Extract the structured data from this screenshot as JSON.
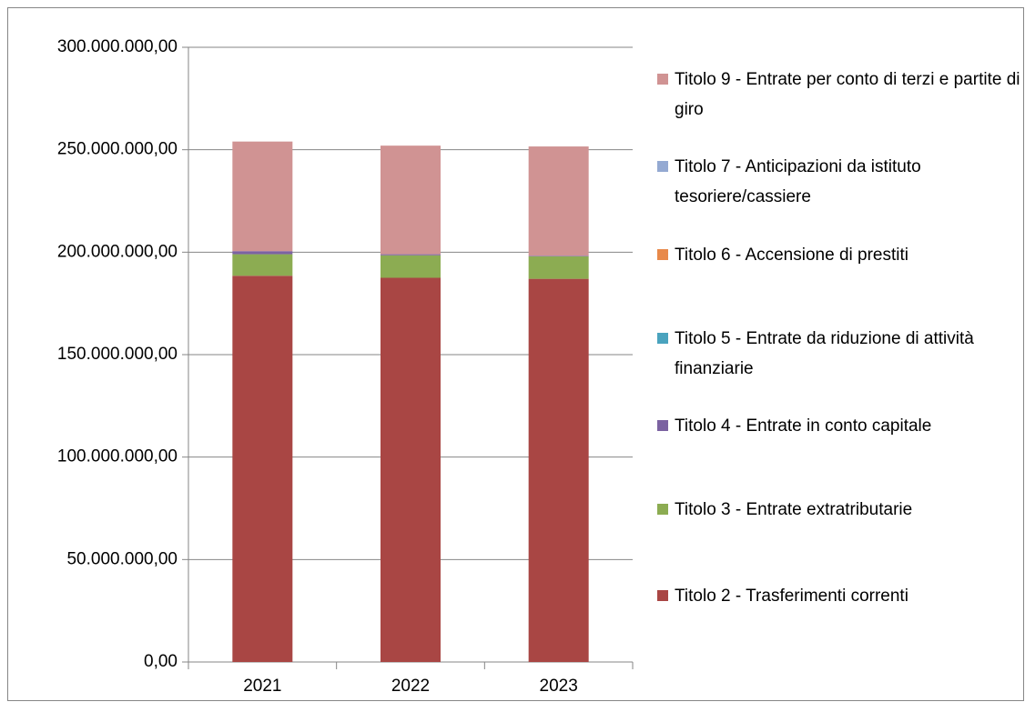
{
  "chart_data": {
    "type": "stacked_bar",
    "categories": [
      "2021",
      "2022",
      "2023"
    ],
    "series": [
      {
        "name": "Titolo 2 - Trasferimenti correnti",
        "color": "#a94644",
        "values": [
          188500000,
          187500000,
          187000000
        ]
      },
      {
        "name": "Titolo 3 - Entrate extratributarie",
        "color": "#8cac52",
        "values": [
          10500000,
          11000000,
          11000000
        ]
      },
      {
        "name": "Titolo 4 - Entrate in conto capitale",
        "color": "#7b62a1",
        "values": [
          1500000,
          500000,
          300000
        ]
      },
      {
        "name": "Titolo 5 - Entrate da riduzione di attività finanziarie",
        "color": "#4aa3be",
        "values": [
          0,
          0,
          0
        ]
      },
      {
        "name": "Titolo 6 - Accensione di prestiti",
        "color": "#e8894a",
        "values": [
          0,
          0,
          0
        ]
      },
      {
        "name": "Titolo 7 - Anticipazioni da istituto tesoriere/cassiere",
        "color": "#94a9d2",
        "values": [
          0,
          0,
          0
        ]
      },
      {
        "name": "Titolo 9 - Entrate per conto di terzi e partite di giro",
        "color": "#d09393",
        "values": [
          53500000,
          53000000,
          53300000
        ]
      }
    ],
    "ylim": [
      0,
      300000000
    ],
    "yticks": [
      {
        "value": 0,
        "label": "0,00"
      },
      {
        "value": 50000000,
        "label": "50.000.000,00"
      },
      {
        "value": 100000000,
        "label": "100.000.000,00"
      },
      {
        "value": 150000000,
        "label": "150.000.000,00"
      },
      {
        "value": 200000000,
        "label": "200.000.000,00"
      },
      {
        "value": 250000000,
        "label": "250.000.000,00"
      },
      {
        "value": 300000000,
        "label": "300.000.000,00"
      }
    ],
    "grid": true,
    "legend": "right"
  }
}
